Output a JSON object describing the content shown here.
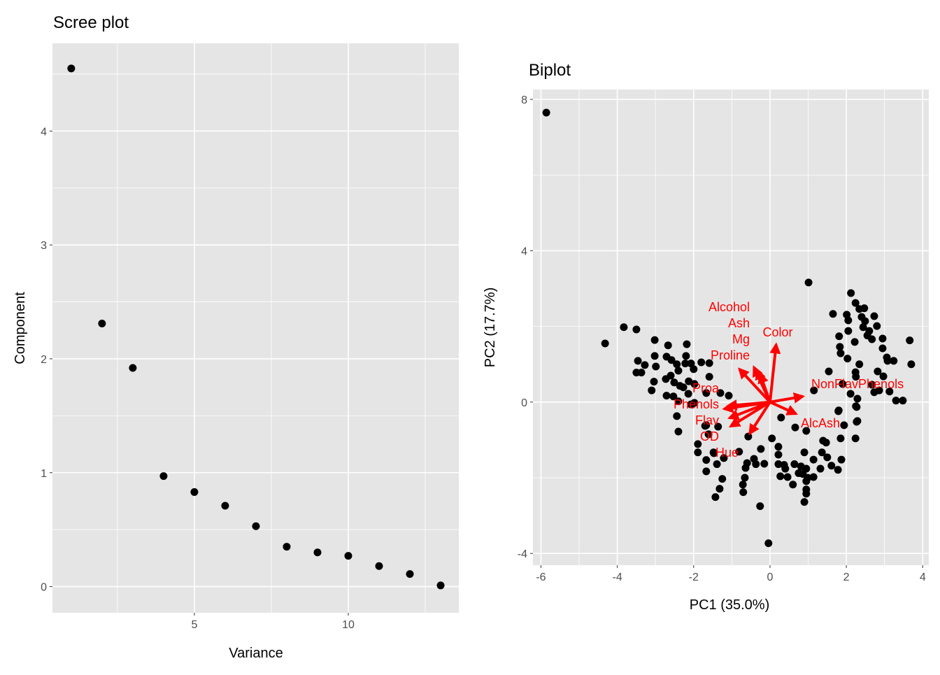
{
  "chart_data": [
    {
      "type": "scatter",
      "title": "Scree plot",
      "xlabel": "Variance",
      "ylabel": "Component",
      "xlim": [
        0.39,
        13.59
      ],
      "ylim": [
        -0.23,
        4.77
      ],
      "xticks": [
        5,
        10
      ],
      "yticks": [
        0,
        1,
        2,
        3,
        4
      ],
      "grid": true,
      "point_color": "#000000",
      "panel_color": "#e5e5e5",
      "x": [
        1,
        2,
        3,
        4,
        5,
        6,
        7,
        8,
        9,
        10,
        11,
        12,
        13
      ],
      "y": [
        4.55,
        2.31,
        1.92,
        0.97,
        0.83,
        0.71,
        0.53,
        0.35,
        0.3,
        0.27,
        0.18,
        0.11,
        0.01
      ]
    },
    {
      "type": "scatter",
      "title": "Biplot",
      "xlabel": "PC1 (35.0%)",
      "ylabel": "PC2 (17.7%)",
      "xlim": [
        -6.21,
        4.16
      ],
      "ylim": [
        -4.31,
        8.26
      ],
      "xticks": [
        -6,
        -4,
        -2,
        0,
        2,
        4
      ],
      "yticks": [
        -4,
        0,
        4,
        8
      ],
      "grid": true,
      "point_color": "#000000",
      "arrow_color": "#ff0000",
      "panel_color": "#e5e5e5",
      "points": [
        [
          -5.86,
          7.65
        ],
        [
          -4.32,
          1.55
        ],
        [
          -3.83,
          1.98
        ],
        [
          -3.5,
          1.92
        ],
        [
          -3.02,
          1.64
        ],
        [
          -2.67,
          1.5
        ],
        [
          -2.18,
          1.53
        ],
        [
          -3.46,
          1.09
        ],
        [
          -3.28,
          0.98
        ],
        [
          -3.02,
          1.22
        ],
        [
          -2.99,
          0.94
        ],
        [
          -2.71,
          1.2
        ],
        [
          -2.58,
          1.11
        ],
        [
          -2.44,
          1.0
        ],
        [
          -2.2,
          1.22
        ],
        [
          -2.22,
          1.02
        ],
        [
          -2.07,
          1.02
        ],
        [
          -2.0,
          0.87
        ],
        [
          -1.8,
          1.05
        ],
        [
          -1.59,
          1.03
        ],
        [
          -2.4,
          0.83
        ],
        [
          -3.5,
          0.78
        ],
        [
          -3.37,
          0.78
        ],
        [
          -1.59,
          0.67
        ],
        [
          -2.6,
          0.7
        ],
        [
          -2.73,
          0.61
        ],
        [
          -3.04,
          0.54
        ],
        [
          -2.51,
          0.52
        ],
        [
          -2.36,
          0.43
        ],
        [
          -2.27,
          0.39
        ],
        [
          -2.13,
          0.55
        ],
        [
          -1.98,
          0.48
        ],
        [
          -3.1,
          0.31
        ],
        [
          -2.14,
          0.22
        ],
        [
          -1.67,
          0.24
        ],
        [
          -2.71,
          0.17
        ],
        [
          -2.53,
          0.15
        ],
        [
          -2.4,
          0.02
        ],
        [
          -1.3,
          0.24
        ],
        [
          -1.08,
          0.17
        ],
        [
          -2.07,
          -0.06
        ],
        [
          -1.98,
          -0.02
        ],
        [
          -2.44,
          -0.37
        ],
        [
          -2.4,
          -0.78
        ],
        [
          -1.7,
          -0.63
        ],
        [
          -1.61,
          -0.85
        ],
        [
          -1.89,
          -1.11
        ],
        [
          -1.89,
          -1.33
        ],
        [
          -1.48,
          -1.33
        ],
        [
          0.29,
          -0.41
        ],
        [
          0.66,
          -0.67
        ],
        [
          0.95,
          -0.76
        ],
        [
          1.8,
          -0.22
        ],
        [
          2.27,
          -0.13
        ],
        [
          2.27,
          -0.52
        ],
        [
          1.94,
          -0.61
        ],
        [
          1.85,
          -0.96
        ],
        [
          2.24,
          -0.96
        ],
        [
          1.39,
          -1.02
        ],
        [
          1.47,
          -1.07
        ],
        [
          -0.57,
          -0.91
        ],
        [
          0.05,
          -0.96
        ],
        [
          0.22,
          -1.18
        ],
        [
          0.22,
          -1.39
        ],
        [
          -0.24,
          -1.24
        ],
        [
          -0.81,
          -1.31
        ],
        [
          -0.42,
          -1.5
        ],
        [
          -0.6,
          -1.61
        ],
        [
          -0.64,
          -1.74
        ],
        [
          -0.37,
          -1.64
        ],
        [
          -0.15,
          -1.63
        ],
        [
          0.22,
          -1.64
        ],
        [
          0.37,
          -1.66
        ],
        [
          0.4,
          -1.76
        ],
        [
          0.27,
          -1.96
        ],
        [
          0.46,
          -1.98
        ],
        [
          0.64,
          -1.64
        ],
        [
          0.81,
          -1.7
        ],
        [
          0.95,
          -1.76
        ],
        [
          0.75,
          -1.88
        ],
        [
          0.86,
          -1.9
        ],
        [
          0.99,
          -2.0
        ],
        [
          1.14,
          -1.98
        ],
        [
          0.95,
          -2.09
        ],
        [
          0.6,
          -2.18
        ],
        [
          0.9,
          -1.33
        ],
        [
          1.14,
          -1.52
        ],
        [
          1.36,
          -1.33
        ],
        [
          1.5,
          -1.46
        ],
        [
          1.32,
          -1.76
        ],
        [
          1.61,
          -1.68
        ],
        [
          1.78,
          -1.79
        ],
        [
          1.87,
          -1.52
        ],
        [
          -0.66,
          -2.0
        ],
        [
          -0.71,
          -2.18
        ],
        [
          -0.7,
          -2.38
        ],
        [
          -1.25,
          -2.03
        ],
        [
          -1.32,
          -2.29
        ],
        [
          -1.43,
          -2.51
        ],
        [
          0.95,
          -2.31
        ],
        [
          0.95,
          -2.42
        ],
        [
          0.9,
          -2.64
        ],
        [
          -0.26,
          -2.75
        ],
        [
          -0.04,
          -3.73
        ],
        [
          -1.47,
          -1.35
        ],
        [
          -1.67,
          -1.53
        ],
        [
          -1.39,
          -1.64
        ],
        [
          -1.67,
          -1.83
        ],
        [
          -1.21,
          -1.48
        ],
        [
          -1.67,
          -0.61
        ],
        [
          -1.36,
          -0.65
        ],
        [
          1.01,
          3.16
        ],
        [
          2.12,
          2.88
        ],
        [
          2.24,
          2.62
        ],
        [
          2.34,
          2.46
        ],
        [
          2.47,
          2.48
        ],
        [
          1.65,
          2.33
        ],
        [
          2.01,
          2.31
        ],
        [
          2.05,
          2.16
        ],
        [
          2.4,
          2.25
        ],
        [
          2.49,
          2.14
        ],
        [
          2.73,
          2.27
        ],
        [
          2.8,
          2.01
        ],
        [
          2.44,
          1.98
        ],
        [
          2.6,
          1.88
        ],
        [
          2.05,
          1.88
        ],
        [
          2.55,
          1.76
        ],
        [
          2.67,
          1.66
        ],
        [
          1.81,
          1.74
        ],
        [
          2.22,
          1.59
        ],
        [
          2.95,
          1.68
        ],
        [
          3.66,
          1.63
        ],
        [
          2.95,
          1.42
        ],
        [
          1.83,
          1.46
        ],
        [
          1.85,
          1.29
        ],
        [
          2.03,
          1.15
        ],
        [
          3.06,
          1.18
        ],
        [
          3.08,
          1.09
        ],
        [
          3.24,
          1.09
        ],
        [
          3.7,
          1.0
        ],
        [
          2.34,
          1.0
        ],
        [
          2.24,
          0.79
        ],
        [
          2.25,
          0.67
        ],
        [
          1.54,
          0.81
        ],
        [
          2.82,
          0.81
        ],
        [
          2.97,
          0.68
        ],
        [
          1.9,
          0.48
        ],
        [
          2.11,
          0.22
        ],
        [
          2.29,
          0.09
        ],
        [
          2.25,
          -0.11
        ],
        [
          2.67,
          0.46
        ],
        [
          2.73,
          0.26
        ],
        [
          2.86,
          0.31
        ],
        [
          3.13,
          0.28
        ],
        [
          3.3,
          0.04
        ],
        [
          3.48,
          0.04
        ],
        [
          1.15,
          0.31
        ],
        [
          1.79,
          -0.24
        ],
        [
          2.29,
          -0.5
        ]
      ],
      "arrows": [
        {
          "label": "Color",
          "x": 0.16,
          "y": 1.52
        },
        {
          "label": "Alcohol",
          "x": -0.42,
          "y": 0.92
        },
        {
          "label": "Ash",
          "x": -0.34,
          "y": 0.84
        },
        {
          "label": "Mg",
          "x": -0.26,
          "y": 0.74
        },
        {
          "label": "Proline",
          "x": -0.8,
          "y": 0.87
        },
        {
          "label": "NonFlavPhenols",
          "x": 0.86,
          "y": 0.15
        },
        {
          "label": "AlcAsh",
          "x": 0.68,
          "y": -0.31
        },
        {
          "label": "Phenols",
          "x": -1.2,
          "y": -0.18
        },
        {
          "label": "Proa",
          "x": -1.1,
          "y": -0.1
        },
        {
          "label": "Flav",
          "x": -1.06,
          "y": -0.42
        },
        {
          "label": "OD",
          "x": -1.03,
          "y": -0.64
        },
        {
          "label": "Hue",
          "x": -0.53,
          "y": -0.83
        }
      ]
    }
  ]
}
